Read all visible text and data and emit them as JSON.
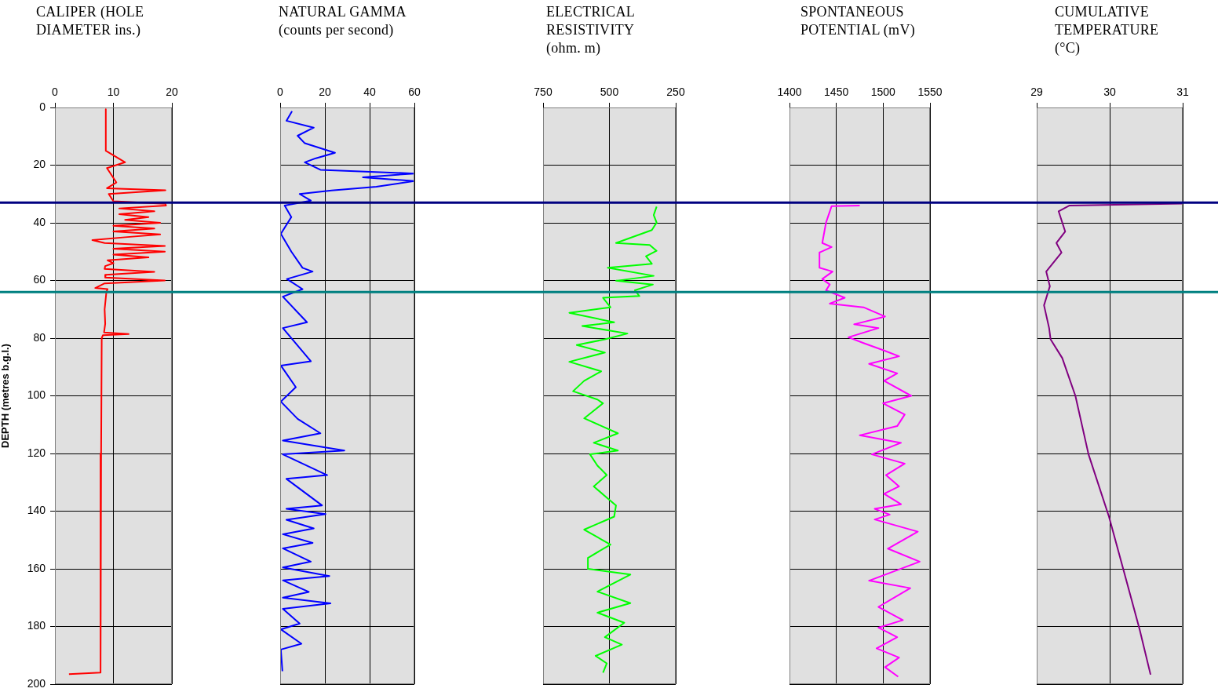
{
  "chart_data": [
    {
      "type": "line",
      "title": "CALIPER (HOLE\nDIAMETER ins.)",
      "ylabel": "DEPTH (metres b.g.l.)",
      "color": "#ff0000",
      "grid": true,
      "x": [
        8.7,
        8.7,
        12,
        8.9,
        10.5,
        8.9,
        18.9,
        9.2,
        10,
        18.9,
        19,
        11,
        17,
        11,
        16,
        12,
        18,
        10,
        17,
        10,
        18,
        12,
        6.4,
        8.5,
        18.8,
        10,
        18.8,
        10,
        16,
        9,
        10,
        8.6,
        8.5,
        17,
        8.7,
        8.6,
        18.8,
        8.5,
        6.9,
        9,
        8.8,
        8.5,
        8.6,
        8.4,
        12.6,
        8.2,
        8,
        7.9,
        7.8,
        2.4
      ],
      "values": [
        0.6,
        15,
        19,
        21,
        26,
        28,
        28.7,
        30,
        32.5,
        33.4,
        34,
        35,
        36,
        37,
        38,
        39,
        40,
        41,
        42,
        43,
        44,
        45,
        46,
        47,
        48,
        49,
        50,
        51,
        52,
        53,
        54,
        55,
        56,
        57,
        58,
        59,
        60,
        61,
        62.6,
        63,
        64,
        70,
        75,
        78,
        78.6,
        79,
        80,
        120,
        196,
        196.5
      ],
      "xlim": [
        0,
        20
      ],
      "xticks": [
        0,
        10,
        20
      ],
      "ylim": [
        200,
        0
      ],
      "yticks": [
        0,
        20,
        40,
        60,
        80,
        100,
        120,
        140,
        160,
        180,
        200
      ],
      "ref_lines": [
        {
          "axis": "y",
          "value": 33,
          "color": "#000080"
        },
        {
          "axis": "y",
          "value": 64,
          "color": "#008080"
        }
      ]
    },
    {
      "type": "line",
      "title": "NATURAL GAMMA\n(counts per second)",
      "color": "#0000ff",
      "grid": true,
      "tick_labels": "x",
      "x": [
        5.3,
        2.8,
        15,
        7.8,
        11,
        24.5,
        16,
        11,
        18,
        60,
        37,
        60,
        43,
        23,
        8.7,
        13.7,
        2,
        5,
        0.3,
        5,
        10,
        14.5,
        3,
        10,
        1.2,
        12,
        1.2,
        13.7,
        0.3,
        7,
        0.3,
        7.8,
        18,
        1.2,
        28.7,
        1.2,
        21,
        2.8,
        18.7,
        2.8,
        20.3,
        2.8,
        15,
        1.2,
        14.5,
        1.2,
        13.7,
        1.2,
        22,
        1.2,
        12.8,
        1.2,
        22.5,
        1.2,
        8.7,
        0.3,
        9.5,
        0.3,
        1
      ],
      "values": [
        1.3,
        4.6,
        7,
        9.8,
        12.4,
        15.7,
        17.6,
        19,
        21.6,
        22.9,
        24.2,
        25.5,
        27.5,
        28.8,
        30,
        32.3,
        34,
        38,
        43.8,
        50,
        55.6,
        56.9,
        59.5,
        63,
        65.6,
        74.5,
        76.5,
        88,
        89.5,
        97,
        102,
        108,
        113,
        115.5,
        119,
        120.3,
        127.5,
        128.8,
        138,
        139.2,
        141,
        143,
        146,
        148,
        151,
        152.9,
        157.5,
        159.5,
        162.5,
        164,
        168,
        170,
        172,
        173.9,
        179,
        181,
        186,
        188,
        195.5
      ],
      "xlim": [
        0,
        60
      ],
      "xticks": [
        0,
        20,
        40,
        60
      ],
      "ylim": [
        200,
        0
      ],
      "yticks": [
        0,
        20,
        40,
        60,
        80,
        100,
        120,
        140,
        160,
        180,
        200
      ],
      "ref_lines": [
        {
          "axis": "y",
          "value": 33,
          "color": "#000080"
        },
        {
          "axis": "y",
          "value": 64,
          "color": "#008080"
        }
      ]
    },
    {
      "type": "line",
      "title": "ELECTRICAL\nRESISTIVITY\n(ohm. m)",
      "color": "#00ff00",
      "grid": true,
      "tick_labels": "x",
      "x": [
        322,
        333,
        322,
        340,
        475,
        348,
        322,
        362,
        340,
        506,
        333,
        475,
        336,
        404,
        387,
        524,
        496,
        651,
        482,
        602,
        432,
        517,
        623,
        517,
        651,
        531,
        595,
        637,
        545,
        524,
        595,
        468,
        559,
        468,
        573,
        545,
        510,
        559,
        510,
        475,
        482,
        595,
        496,
        581,
        581,
        421,
        545,
        421,
        545,
        444,
        517,
        453,
        552,
        510,
        524
      ],
      "values": [
        34.4,
        37.3,
        39.9,
        42.5,
        47,
        47.7,
        49.7,
        51.6,
        54.2,
        55.6,
        58.4,
        60.1,
        61.4,
        63.4,
        65.4,
        66,
        69.3,
        71.2,
        74.5,
        75.8,
        78.4,
        80.4,
        82.4,
        85,
        88.2,
        91.5,
        94.8,
        98.4,
        101.3,
        102.6,
        107.8,
        113,
        116.3,
        119,
        120.3,
        124.2,
        127.5,
        131.4,
        135.3,
        138,
        141.9,
        146.4,
        151.6,
        156.2,
        160,
        162,
        167.9,
        171.9,
        175.2,
        178.7,
        183.7,
        186.3,
        190.2,
        192.8,
        196
      ],
      "xlim": [
        750,
        250
      ],
      "xticks": [
        750,
        500,
        250
      ],
      "ylim": [
        200,
        0
      ],
      "yticks": [
        0,
        20,
        40,
        60,
        80,
        100,
        120,
        140,
        160,
        180,
        200
      ],
      "ref_lines": [
        {
          "axis": "y",
          "value": 33,
          "color": "#000080"
        },
        {
          "axis": "y",
          "value": 64,
          "color": "#008080"
        }
      ]
    },
    {
      "type": "line",
      "title": "SPONTANEOUS\nPOTENTIAL (mV)",
      "color": "#ff00ff",
      "grid": true,
      "tick_labels": "x",
      "x": [
        1475,
        1445,
        1439,
        1435,
        1445,
        1432,
        1432,
        1446,
        1435,
        1443,
        1439,
        1459,
        1443,
        1479,
        1502,
        1469,
        1495,
        1463,
        1479,
        1501,
        1517,
        1485,
        1515,
        1501,
        1530,
        1500,
        1523,
        1515,
        1475,
        1519,
        1488,
        1523,
        1503,
        1517,
        1501,
        1519,
        1491,
        1507,
        1491,
        1537,
        1505,
        1539,
        1485,
        1529,
        1495,
        1521,
        1495,
        1515,
        1493,
        1517,
        1502,
        1516
      ],
      "values": [
        34,
        34.2,
        39.9,
        47,
        48.4,
        50.3,
        55.6,
        56.9,
        59.5,
        61.4,
        63.4,
        66,
        68,
        69.3,
        72.5,
        75.2,
        76.5,
        79.7,
        81.7,
        84.3,
        86.3,
        88.9,
        92.2,
        94.8,
        100,
        102.6,
        106.5,
        110.5,
        113.7,
        116.3,
        120.3,
        123.5,
        127.5,
        131.4,
        134,
        137.6,
        139.2,
        141.2,
        142.9,
        147.1,
        153,
        157.5,
        164.1,
        166.7,
        173.2,
        177.8,
        180.4,
        183.7,
        187.6,
        190.8,
        194.1,
        197.4
      ],
      "xlim": [
        1400,
        1550
      ],
      "xticks": [
        1400,
        1450,
        1500,
        1550
      ],
      "ylim": [
        200,
        0
      ],
      "yticks": [
        0,
        20,
        40,
        60,
        80,
        100,
        120,
        140,
        160,
        180,
        200
      ],
      "ref_lines": [
        {
          "axis": "y",
          "value": 33,
          "color": "#000080"
        },
        {
          "axis": "y",
          "value": 64,
          "color": "#008080"
        }
      ]
    },
    {
      "type": "line",
      "title": "CUMULATIVE\nTEMPERATURE\n(°C)",
      "color": "#800080",
      "grid": true,
      "tick_labels": "x",
      "x": [
        31,
        29.45,
        29.3,
        29.39,
        29.27,
        29.34,
        29.13,
        29.18,
        29.1,
        29.17,
        29.19,
        29.35,
        29.53,
        29.71,
        29.99,
        30.2,
        30.41,
        30.56
      ],
      "values": [
        33.3,
        34,
        36,
        43,
        47,
        50.3,
        56.9,
        62,
        68.6,
        76.5,
        80.4,
        86.9,
        100,
        120.3,
        141.9,
        161.4,
        181,
        196.7
      ],
      "xlim": [
        29,
        31
      ],
      "xticks": [
        29,
        30,
        31
      ],
      "ylim": [
        200,
        0
      ],
      "yticks": [
        0,
        20,
        40,
        60,
        80,
        100,
        120,
        140,
        160,
        180,
        200
      ],
      "ref_lines": [
        {
          "axis": "y",
          "value": 33,
          "color": "#000080"
        },
        {
          "axis": "y",
          "value": 64,
          "color": "#008080"
        }
      ]
    }
  ]
}
